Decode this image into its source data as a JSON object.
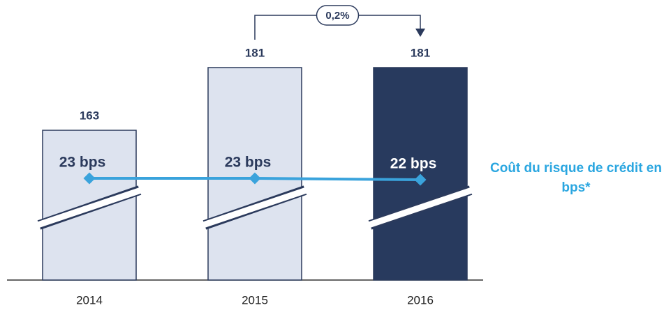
{
  "chart_data": {
    "type": "bar",
    "categories": [
      "2014",
      "2015",
      "2016"
    ],
    "values": [
      163,
      181,
      181
    ],
    "colors": [
      "#dde3ef",
      "#dde3ef",
      "#283a5e"
    ],
    "ylim": [
      120,
      190
    ],
    "line": {
      "name": "Coût du risque de crédit en bps*",
      "values": [
        23,
        23,
        22
      ],
      "value_labels": [
        "23 bps",
        "23 bps",
        "22 bps"
      ],
      "color": "#3aa3dc",
      "axis": "y2"
    },
    "y2lim": [
      -50,
      125
    ],
    "annotation": "0,2%"
  }
}
